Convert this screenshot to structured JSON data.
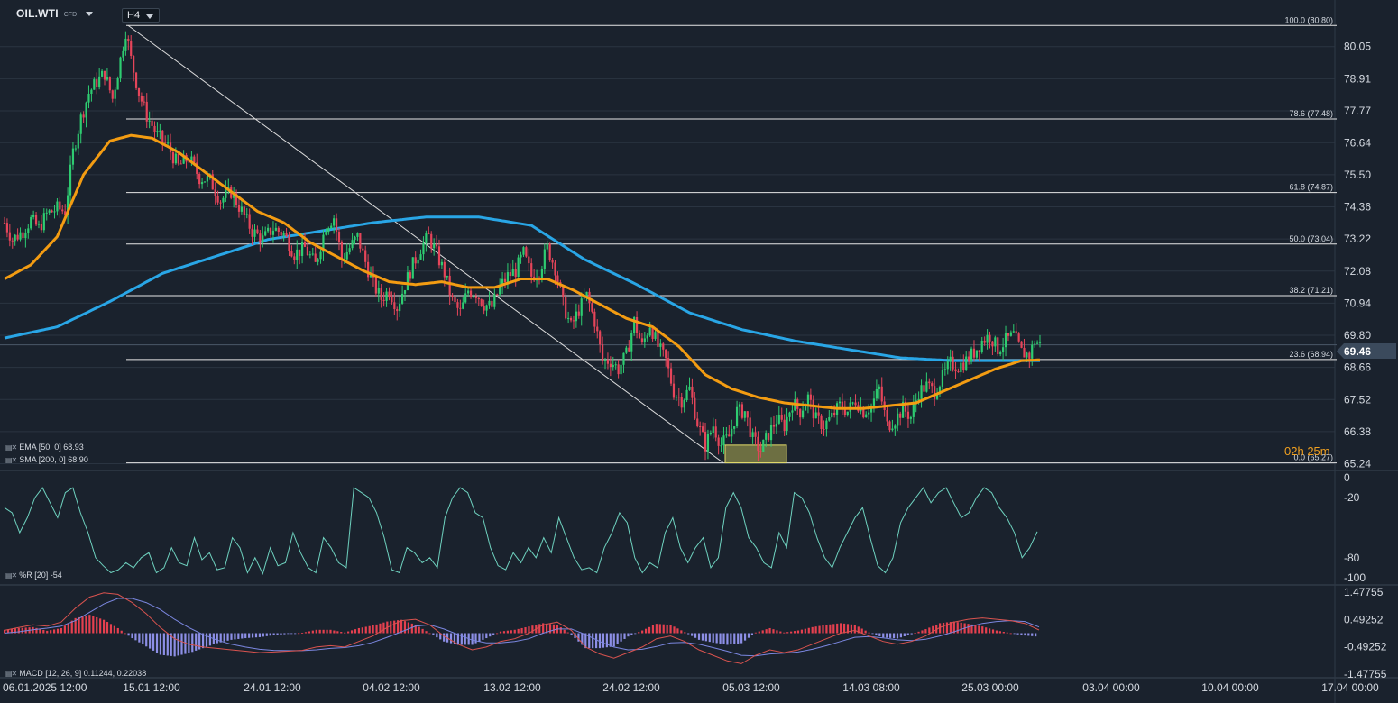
{
  "header": {
    "symbol": "OIL.WTI",
    "symbol_type": "CFD",
    "timeframe": "H4",
    "countdown_hours": "02",
    "countdown_hours_unit": "h",
    "countdown_minutes": "25",
    "countdown_minutes_unit": "m"
  },
  "colors": {
    "background": "#1a222d",
    "up_candle": "#2ecc71",
    "down_candle": "#e5455a",
    "ema": "#f39c12",
    "sma": "#29a6e6",
    "williams": "#6fd3c0",
    "macd_line": "#d9534f",
    "signal_line": "#7b87e0",
    "hist_pos": "#e5404f",
    "hist_neg": "#8d8fe6",
    "grid": "#2a3441",
    "fib": "#e6e6e6"
  },
  "chart_data": {
    "type": "candlestick",
    "timeframe": "H4",
    "price_axis_ticks": [
      "80.05",
      "78.91",
      "77.77",
      "76.64",
      "75.50",
      "74.36",
      "73.22",
      "72.08",
      "70.94",
      "69.80",
      "68.66",
      "67.52",
      "66.38",
      "65.24"
    ],
    "current_price": "69.46",
    "x_tick_labels": [
      "06.01.2025 12:00",
      "15.01 12:00",
      "24.01 12:00",
      "04.02 12:00",
      "13.02 12:00",
      "24.02 12:00",
      "05.03 12:00",
      "14.03 08:00",
      "25.03 00:00",
      "03.04 00:00",
      "10.04 00:00",
      "17.04 00:00"
    ],
    "fibonacci": [
      {
        "label": "100.0 (80.80)",
        "price": 80.8
      },
      {
        "label": "78.6 (77.48)",
        "price": 77.48
      },
      {
        "label": "61.8 (74.87)",
        "price": 74.87
      },
      {
        "label": "50.0 (73.04)",
        "price": 73.04
      },
      {
        "label": "38.2 (71.21)",
        "price": 71.21
      },
      {
        "label": "23.6 (68.94)",
        "price": 68.94
      },
      {
        "label": "0.0 (65.27)",
        "price": 65.27
      }
    ],
    "trendline": {
      "from": {
        "date": "15.01",
        "price": 80.8
      },
      "to": {
        "date": "05.03",
        "price": 65.27
      }
    },
    "indicators": [
      {
        "label": "EMA [50, 0] 68.93",
        "period": 50,
        "value": 68.93
      },
      {
        "label": "SMA [200, 0] 68.90",
        "period": 200,
        "value": 68.9
      }
    ],
    "price_path": [
      {
        "i": 0,
        "p": 73.8
      },
      {
        "i": 3,
        "p": 73.2
      },
      {
        "i": 7,
        "p": 73.5
      },
      {
        "i": 10,
        "p": 73.9
      },
      {
        "i": 13,
        "p": 73.6
      },
      {
        "i": 16,
        "p": 74.1
      },
      {
        "i": 20,
        "p": 74.3
      },
      {
        "i": 23,
        "p": 74.2
      },
      {
        "i": 26,
        "p": 76.3
      },
      {
        "i": 29,
        "p": 77.5
      },
      {
        "i": 32,
        "p": 78.4
      },
      {
        "i": 35,
        "p": 78.8
      },
      {
        "i": 38,
        "p": 79.1
      },
      {
        "i": 41,
        "p": 78.2
      },
      {
        "i": 44,
        "p": 79.6
      },
      {
        "i": 46,
        "p": 80.6
      },
      {
        "i": 48,
        "p": 79.6
      },
      {
        "i": 51,
        "p": 78.4
      },
      {
        "i": 54,
        "p": 77.6
      },
      {
        "i": 58,
        "p": 76.9
      },
      {
        "i": 62,
        "p": 76.5
      },
      {
        "i": 66,
        "p": 75.8
      },
      {
        "i": 70,
        "p": 76.1
      },
      {
        "i": 74,
        "p": 75.4
      },
      {
        "i": 78,
        "p": 75.3
      },
      {
        "i": 82,
        "p": 74.6
      },
      {
        "i": 86,
        "p": 74.9
      },
      {
        "i": 90,
        "p": 74.2
      },
      {
        "i": 94,
        "p": 73.5
      },
      {
        "i": 98,
        "p": 73.2
      },
      {
        "i": 102,
        "p": 73.6
      },
      {
        "i": 106,
        "p": 73.4
      },
      {
        "i": 110,
        "p": 72.7
      },
      {
        "i": 114,
        "p": 72.9
      },
      {
        "i": 118,
        "p": 72.3
      },
      {
        "i": 122,
        "p": 73.7
      },
      {
        "i": 125,
        "p": 74.0
      },
      {
        "i": 128,
        "p": 72.5
      },
      {
        "i": 131,
        "p": 72.9
      },
      {
        "i": 134,
        "p": 73.3
      },
      {
        "i": 137,
        "p": 72.4
      },
      {
        "i": 140,
        "p": 71.6
      },
      {
        "i": 143,
        "p": 71.1
      },
      {
        "i": 146,
        "p": 71.4
      },
      {
        "i": 149,
        "p": 70.8
      },
      {
        "i": 152,
        "p": 71.6
      },
      {
        "i": 155,
        "p": 72.3
      },
      {
        "i": 158,
        "p": 72.9
      },
      {
        "i": 161,
        "p": 73.3
      },
      {
        "i": 164,
        "p": 72.7
      },
      {
        "i": 167,
        "p": 72.0
      },
      {
        "i": 170,
        "p": 71.0
      },
      {
        "i": 173,
        "p": 70.6
      },
      {
        "i": 176,
        "p": 71.4
      },
      {
        "i": 179,
        "p": 71.3
      },
      {
        "i": 182,
        "p": 70.9
      },
      {
        "i": 185,
        "p": 70.8
      },
      {
        "i": 188,
        "p": 71.5
      },
      {
        "i": 191,
        "p": 71.9
      },
      {
        "i": 194,
        "p": 72.1
      },
      {
        "i": 197,
        "p": 72.7
      },
      {
        "i": 200,
        "p": 71.9
      },
      {
        "i": 203,
        "p": 72.1
      },
      {
        "i": 206,
        "p": 72.9
      },
      {
        "i": 209,
        "p": 72.2
      },
      {
        "i": 212,
        "p": 70.9
      },
      {
        "i": 215,
        "p": 70.1
      },
      {
        "i": 218,
        "p": 70.7
      },
      {
        "i": 221,
        "p": 71.2
      },
      {
        "i": 224,
        "p": 70.3
      },
      {
        "i": 227,
        "p": 68.9
      },
      {
        "i": 230,
        "p": 68.9
      },
      {
        "i": 233,
        "p": 68.6
      },
      {
        "i": 236,
        "p": 69.1
      },
      {
        "i": 239,
        "p": 70.3
      },
      {
        "i": 242,
        "p": 69.4
      },
      {
        "i": 245,
        "p": 70.2
      },
      {
        "i": 248,
        "p": 69.4
      },
      {
        "i": 251,
        "p": 68.9
      },
      {
        "i": 254,
        "p": 67.8
      },
      {
        "i": 257,
        "p": 67.5
      },
      {
        "i": 260,
        "p": 67.9
      },
      {
        "i": 263,
        "p": 66.7
      },
      {
        "i": 266,
        "p": 65.9
      },
      {
        "i": 269,
        "p": 66.6
      },
      {
        "i": 272,
        "p": 65.9
      },
      {
        "i": 275,
        "p": 66.2
      },
      {
        "i": 278,
        "p": 67.1
      },
      {
        "i": 281,
        "p": 67.1
      },
      {
        "i": 284,
        "p": 66.1
      },
      {
        "i": 287,
        "p": 65.7
      },
      {
        "i": 290,
        "p": 66.3
      },
      {
        "i": 293,
        "p": 66.8
      },
      {
        "i": 296,
        "p": 66.6
      },
      {
        "i": 299,
        "p": 67.4
      },
      {
        "i": 302,
        "p": 67.1
      },
      {
        "i": 305,
        "p": 67.6
      },
      {
        "i": 308,
        "p": 66.8
      },
      {
        "i": 311,
        "p": 66.6
      },
      {
        "i": 314,
        "p": 66.9
      },
      {
        "i": 317,
        "p": 67.3
      },
      {
        "i": 320,
        "p": 67.1
      },
      {
        "i": 323,
        "p": 67.5
      },
      {
        "i": 326,
        "p": 67.1
      },
      {
        "i": 329,
        "p": 67.3
      },
      {
        "i": 332,
        "p": 67.9
      },
      {
        "i": 335,
        "p": 66.6
      },
      {
        "i": 338,
        "p": 66.8
      },
      {
        "i": 341,
        "p": 67.2
      },
      {
        "i": 344,
        "p": 66.9
      },
      {
        "i": 347,
        "p": 67.8
      },
      {
        "i": 350,
        "p": 68.0
      },
      {
        "i": 353,
        "p": 67.8
      },
      {
        "i": 356,
        "p": 68.3
      },
      {
        "i": 359,
        "p": 68.8
      },
      {
        "i": 362,
        "p": 68.7
      },
      {
        "i": 365,
        "p": 68.9
      },
      {
        "i": 368,
        "p": 69.2
      },
      {
        "i": 371,
        "p": 69.6
      },
      {
        "i": 374,
        "p": 69.8
      },
      {
        "i": 377,
        "p": 69.3
      },
      {
        "i": 380,
        "p": 69.6
      },
      {
        "i": 383,
        "p": 69.8
      },
      {
        "i": 386,
        "p": 69.2
      },
      {
        "i": 389,
        "p": 69.1
      },
      {
        "i": 391,
        "p": 69.6
      },
      {
        "i": 393,
        "p": 69.46
      }
    ],
    "ema_path": [
      {
        "i": 0,
        "p": 71.8
      },
      {
        "i": 10,
        "p": 72.3
      },
      {
        "i": 20,
        "p": 73.3
      },
      {
        "i": 30,
        "p": 75.5
      },
      {
        "i": 40,
        "p": 76.7
      },
      {
        "i": 48,
        "p": 76.9
      },
      {
        "i": 56,
        "p": 76.8
      },
      {
        "i": 66,
        "p": 76.3
      },
      {
        "i": 76,
        "p": 75.6
      },
      {
        "i": 86,
        "p": 74.9
      },
      {
        "i": 96,
        "p": 74.2
      },
      {
        "i": 106,
        "p": 73.8
      },
      {
        "i": 116,
        "p": 73.1
      },
      {
        "i": 126,
        "p": 72.6
      },
      {
        "i": 136,
        "p": 72.1
      },
      {
        "i": 146,
        "p": 71.7
      },
      {
        "i": 156,
        "p": 71.6
      },
      {
        "i": 166,
        "p": 71.7
      },
      {
        "i": 176,
        "p": 71.5
      },
      {
        "i": 186,
        "p": 71.5
      },
      {
        "i": 196,
        "p": 71.8
      },
      {
        "i": 206,
        "p": 71.8
      },
      {
        "i": 216,
        "p": 71.4
      },
      {
        "i": 226,
        "p": 70.9
      },
      {
        "i": 236,
        "p": 70.4
      },
      {
        "i": 246,
        "p": 70.1
      },
      {
        "i": 256,
        "p": 69.4
      },
      {
        "i": 266,
        "p": 68.4
      },
      {
        "i": 276,
        "p": 67.9
      },
      {
        "i": 286,
        "p": 67.6
      },
      {
        "i": 296,
        "p": 67.4
      },
      {
        "i": 306,
        "p": 67.3
      },
      {
        "i": 316,
        "p": 67.2
      },
      {
        "i": 326,
        "p": 67.2
      },
      {
        "i": 336,
        "p": 67.3
      },
      {
        "i": 346,
        "p": 67.4
      },
      {
        "i": 356,
        "p": 67.8
      },
      {
        "i": 366,
        "p": 68.2
      },
      {
        "i": 376,
        "p": 68.6
      },
      {
        "i": 386,
        "p": 68.9
      },
      {
        "i": 393,
        "p": 68.93
      }
    ],
    "sma_path": [
      {
        "i": 0,
        "p": 69.7
      },
      {
        "i": 20,
        "p": 70.1
      },
      {
        "i": 40,
        "p": 71.0
      },
      {
        "i": 60,
        "p": 72.0
      },
      {
        "i": 80,
        "p": 72.6
      },
      {
        "i": 100,
        "p": 73.2
      },
      {
        "i": 120,
        "p": 73.5
      },
      {
        "i": 140,
        "p": 73.8
      },
      {
        "i": 160,
        "p": 74.0
      },
      {
        "i": 180,
        "p": 74.0
      },
      {
        "i": 200,
        "p": 73.7
      },
      {
        "i": 220,
        "p": 72.5
      },
      {
        "i": 240,
        "p": 71.6
      },
      {
        "i": 260,
        "p": 70.6
      },
      {
        "i": 280,
        "p": 70.0
      },
      {
        "i": 300,
        "p": 69.6
      },
      {
        "i": 320,
        "p": 69.3
      },
      {
        "i": 340,
        "p": 69.0
      },
      {
        "i": 360,
        "p": 68.9
      },
      {
        "i": 380,
        "p": 68.9
      },
      {
        "i": 393,
        "p": 68.9
      }
    ],
    "williams_r": {
      "label": "%R [20] -54",
      "ticks": [
        "0",
        "-20",
        "-80",
        "-100"
      ],
      "last_value": -54,
      "values": [
        -30,
        -35,
        -55,
        -40,
        -20,
        -10,
        -25,
        -40,
        -15,
        -10,
        -35,
        -55,
        -80,
        -88,
        -95,
        -92,
        -85,
        -90,
        -80,
        -75,
        -95,
        -90,
        -70,
        -85,
        -88,
        -60,
        -82,
        -75,
        -92,
        -90,
        -60,
        -70,
        -95,
        -80,
        -96,
        -70,
        -88,
        -85,
        -55,
        -75,
        -90,
        -95,
        -60,
        -70,
        -85,
        -90,
        -10,
        -15,
        -20,
        -35,
        -60,
        -92,
        -95,
        -70,
        -75,
        -85,
        -80,
        -90,
        -40,
        -20,
        -10,
        -15,
        -35,
        -40,
        -70,
        -88,
        -92,
        -75,
        -85,
        -70,
        -80,
        -60,
        -75,
        -40,
        -60,
        -80,
        -92,
        -90,
        -95,
        -70,
        -55,
        -35,
        -45,
        -80,
        -95,
        -85,
        -90,
        -55,
        -40,
        -70,
        -85,
        -70,
        -60,
        -90,
        -80,
        -30,
        -15,
        -30,
        -60,
        -70,
        -85,
        -90,
        -55,
        -70,
        -15,
        -20,
        -35,
        -60,
        -80,
        -90,
        -70,
        -55,
        -40,
        -30,
        -60,
        -88,
        -95,
        -80,
        -45,
        -30,
        -20,
        -10,
        -25,
        -15,
        -10,
        -25,
        -40,
        -35,
        -20,
        -10,
        -15,
        -30,
        -40,
        -55,
        -80,
        -70,
        -54
      ]
    },
    "macd": {
      "label": "MACD [12, 26, 9] 0.11244, 0.22038",
      "params": [
        12,
        26,
        9
      ],
      "macd_value": 0.11244,
      "signal_value": 0.22038,
      "ticks": [
        "1.47755",
        "0.49252",
        "-0.49252",
        "-1.47755"
      ],
      "macd_line": [
        0.1,
        0.2,
        0.3,
        0.25,
        0.4,
        0.9,
        1.3,
        1.45,
        1.4,
        1.1,
        0.7,
        0.2,
        -0.2,
        -0.4,
        -0.5,
        -0.55,
        -0.6,
        -0.65,
        -0.7,
        -0.68,
        -0.65,
        -0.62,
        -0.5,
        -0.45,
        -0.5,
        -0.3,
        -0.1,
        0.2,
        0.45,
        0.5,
        0.3,
        -0.1,
        -0.4,
        -0.6,
        -0.5,
        -0.3,
        -0.2,
        0.0,
        0.3,
        0.4,
        0.1,
        -0.5,
        -0.75,
        -0.9,
        -0.7,
        -0.5,
        -0.2,
        -0.1,
        -0.3,
        -0.6,
        -0.8,
        -1.0,
        -1.1,
        -0.8,
        -0.6,
        -0.7,
        -0.6,
        -0.4,
        -0.2,
        0.0,
        0.1,
        -0.1,
        -0.3,
        -0.4,
        -0.3,
        -0.1,
        0.2,
        0.4,
        0.5,
        0.55,
        0.5,
        0.45,
        0.35,
        0.11244
      ],
      "signal_line": [
        0.0,
        0.05,
        0.12,
        0.18,
        0.25,
        0.45,
        0.75,
        1.05,
        1.25,
        1.25,
        1.1,
        0.85,
        0.5,
        0.2,
        -0.05,
        -0.25,
        -0.4,
        -0.5,
        -0.58,
        -0.62,
        -0.63,
        -0.63,
        -0.6,
        -0.55,
        -0.52,
        -0.45,
        -0.33,
        -0.15,
        0.05,
        0.25,
        0.3,
        0.15,
        -0.05,
        -0.25,
        -0.35,
        -0.35,
        -0.3,
        -0.2,
        0.0,
        0.15,
        0.15,
        -0.05,
        -0.3,
        -0.5,
        -0.6,
        -0.58,
        -0.48,
        -0.35,
        -0.33,
        -0.4,
        -0.52,
        -0.65,
        -0.8,
        -0.82,
        -0.75,
        -0.72,
        -0.68,
        -0.58,
        -0.45,
        -0.3,
        -0.15,
        -0.12,
        -0.17,
        -0.24,
        -0.27,
        -0.22,
        -0.1,
        0.05,
        0.22,
        0.35,
        0.42,
        0.45,
        0.42,
        0.22038
      ]
    }
  }
}
